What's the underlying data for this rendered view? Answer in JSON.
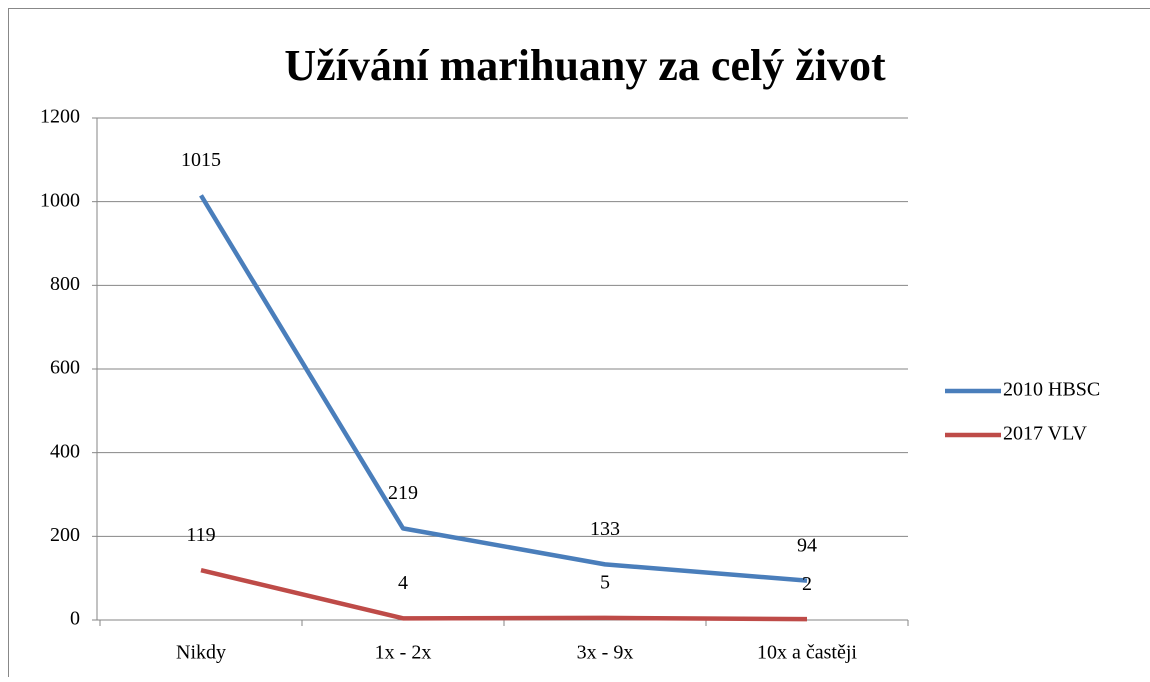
{
  "chart_data": {
    "type": "line",
    "title": "Užívání marihuany za celý život",
    "categories": [
      "Nikdy",
      "1x - 2x",
      "3x - 9x",
      "10x a častěji"
    ],
    "series": [
      {
        "name": "2010 HBSC",
        "color": "#4a7ebb",
        "values": [
          1015,
          219,
          133,
          94
        ]
      },
      {
        "name": "2017 VLV",
        "color": "#be4b48",
        "values": [
          119,
          4,
          5,
          2
        ]
      }
    ],
    "ylim": [
      0,
      1200
    ],
    "yticks": [
      0,
      200,
      400,
      600,
      800,
      1000,
      1200
    ],
    "grid": true,
    "legend": "right"
  }
}
